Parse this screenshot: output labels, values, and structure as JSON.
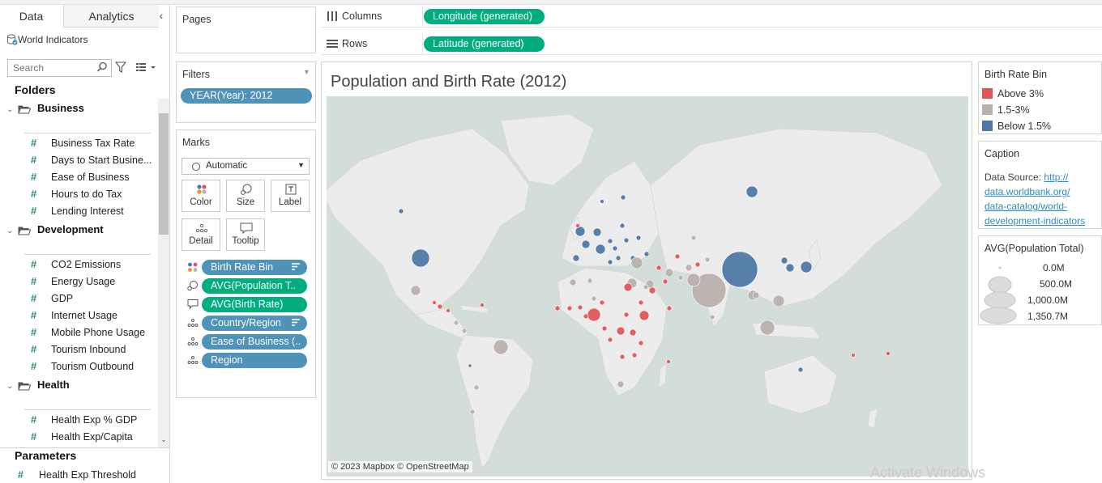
{
  "data_pane": {
    "tabs": [
      "Data",
      "Analytics"
    ],
    "collapse_glyph": "‹",
    "datasource": "World Indicators",
    "search_placeholder": "Search",
    "folders_label": "Folders",
    "folders": [
      {
        "name": "Business",
        "fields": [
          "Business Tax Rate",
          "Days to Start Busine...",
          "Ease of Business",
          "Hours to do Tax",
          "Lending Interest"
        ]
      },
      {
        "name": "Development",
        "fields": [
          "CO2 Emissions",
          "Energy Usage",
          "GDP",
          "Internet Usage",
          "Mobile Phone Usage",
          "Tourism Inbound",
          "Tourism Outbound"
        ]
      },
      {
        "name": "Health",
        "fields": [
          "Health Exp % GDP",
          "Health Exp/Capita"
        ]
      }
    ],
    "parameters_label": "Parameters",
    "parameters": [
      "Health Exp Threshold"
    ],
    "field_type_glyph": "#"
  },
  "cards": {
    "pages_title": "Pages",
    "filters_title": "Filters",
    "filter_pills": [
      "YEAR(Year): 2012"
    ],
    "marks_title": "Marks",
    "mark_type": "Automatic",
    "mark_buttons": [
      "Color",
      "Size",
      "Label",
      "Detail",
      "Tooltip"
    ],
    "mark_pills": [
      {
        "label": "Birth Rate Bin",
        "type": "color",
        "role": "dimension"
      },
      {
        "label": "AVG(Population T..",
        "type": "size",
        "role": "measure"
      },
      {
        "label": "AVG(Birth Rate)",
        "type": "tooltip",
        "role": "measure"
      },
      {
        "label": "Country/Region",
        "type": "detail",
        "role": "dimension"
      },
      {
        "label": "Ease of Business (..",
        "type": "detail",
        "role": "dimension"
      },
      {
        "label": "Region",
        "type": "detail",
        "role": "dimension"
      }
    ]
  },
  "shelves": {
    "columns_label": "Columns",
    "columns_pill": "Longitude (generated)",
    "rows_label": "Rows",
    "rows_pill": "Latitude (generated)"
  },
  "view": {
    "title": "Population and Birth Rate (2012)",
    "attribution": "© 2023 Mapbox © OpenStreetMap"
  },
  "legends": {
    "color_title": "Birth Rate Bin",
    "color_items": [
      {
        "label": "Above 3%",
        "color": "#e15759"
      },
      {
        "label": "1.5-3%",
        "color": "#bab0ac"
      },
      {
        "label": "Below 1.5%",
        "color": "#4e79a7"
      }
    ],
    "caption_title": "Caption",
    "caption_prefix": "Data Source: ",
    "caption_link": "http://data.worldbank.org/data-catalog/world-development-indicators",
    "caption_link_lines": [
      "http://",
      "data.worldbank.org/",
      "data-catalog/world-",
      "development-indicators"
    ],
    "size_title": "AVG(Population Total)",
    "size_items": [
      "0.0M",
      "500.0M",
      "1,000.0M",
      "1,350.7M"
    ]
  },
  "watermark": "Activate Windows",
  "colors": {
    "dimension_pill": "#4f93b8",
    "measure_pill": "#00ad7c",
    "map_water": "#d3ddd9",
    "map_land": "#ececec"
  }
}
